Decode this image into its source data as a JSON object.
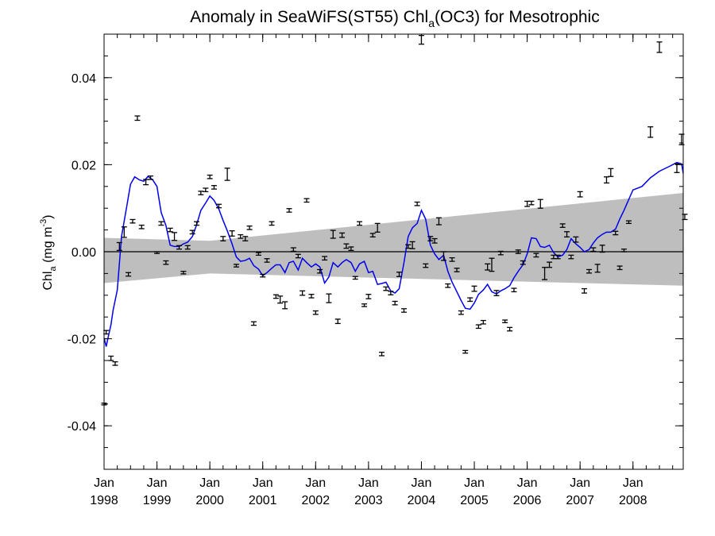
{
  "chart_data": {
    "type": "scatter",
    "title_main": "Anomaly in SeaWiFS(ST55) Chl",
    "title_sub": "a",
    "title_tail": "(OC3) for Mesotrophic",
    "ylabel_main": "Chl",
    "ylabel_sub": "a",
    "ylabel_unit": " (mg m",
    "ylabel_sup": "-3",
    "ylabel_close": ")",
    "ylim": [
      -0.05,
      0.05
    ],
    "xlim": [
      1998.0,
      2008.95
    ],
    "yticks": [
      {
        "value": -0.04,
        "label": "-0.04"
      },
      {
        "value": -0.02,
        "label": "-0.02"
      },
      {
        "value": 0.0,
        "label": "0.00"
      },
      {
        "value": 0.02,
        "label": "0.02"
      },
      {
        "value": 0.04,
        "label": "0.04"
      }
    ],
    "xticks": [
      {
        "value": 1998.0,
        "month": "Jan",
        "year": "1998"
      },
      {
        "value": 1999.0,
        "month": "Jan",
        "year": "1999"
      },
      {
        "value": 2000.0,
        "month": "Jan",
        "year": "2000"
      },
      {
        "value": 2001.0,
        "month": "Jan",
        "year": "2001"
      },
      {
        "value": 2002.0,
        "month": "Jan",
        "year": "2002"
      },
      {
        "value": 2003.0,
        "month": "Jan",
        "year": "2003"
      },
      {
        "value": 2004.0,
        "month": "Jan",
        "year": "2004"
      },
      {
        "value": 2005.0,
        "month": "Jan",
        "year": "2005"
      },
      {
        "value": 2006.0,
        "month": "Jan",
        "year": "2006"
      },
      {
        "value": 2007.0,
        "month": "Jan",
        "year": "2007"
      },
      {
        "value": 2008.0,
        "month": "Jan",
        "year": "2008"
      }
    ],
    "confidence_band": {
      "x": [
        1998.0,
        2000.0,
        2008.95
      ],
      "upper": [
        0.0032,
        0.0025,
        0.0135
      ],
      "lower": [
        -0.0072,
        -0.005,
        -0.0078
      ],
      "color": "#bebebe"
    },
    "zero_line": 0.0,
    "monthly_points": {
      "color": "#000000",
      "points": [
        [
          1998.0,
          -0.035,
          0.0002
        ],
        [
          1998.04,
          -0.0185,
          0.0004
        ],
        [
          1998.13,
          -0.0245,
          0.0005
        ],
        [
          1998.21,
          -0.0257,
          0.0004
        ],
        [
          1998.29,
          0.0012,
          0.0009
        ],
        [
          1998.38,
          0.0045,
          0.0012
        ],
        [
          1998.46,
          -0.0052,
          0.0004
        ],
        [
          1998.54,
          0.007,
          0.0004
        ],
        [
          1998.63,
          0.0307,
          0.0005
        ],
        [
          1998.71,
          0.0057,
          0.0004
        ],
        [
          1998.79,
          0.016,
          0.0006
        ],
        [
          1998.88,
          0.017,
          0.0004
        ],
        [
          1999.0,
          -0.0002,
          0.0002
        ],
        [
          1999.08,
          0.0065,
          0.0004
        ],
        [
          1999.17,
          -0.0025,
          0.0004
        ],
        [
          1999.25,
          0.005,
          0.0004
        ],
        [
          1999.33,
          0.0035,
          0.0009
        ],
        [
          1999.42,
          0.001,
          0.0004
        ],
        [
          1999.5,
          -0.0048,
          0.0003
        ],
        [
          1999.58,
          0.001,
          0.0004
        ],
        [
          1999.67,
          0.0045,
          0.0004
        ],
        [
          1999.75,
          0.0065,
          0.0004
        ],
        [
          1999.83,
          0.0135,
          0.0004
        ],
        [
          1999.92,
          0.0142,
          0.0004
        ],
        [
          2000.0,
          0.0172,
          0.0004
        ],
        [
          2000.08,
          0.0148,
          0.0004
        ],
        [
          2000.17,
          0.0105,
          0.0004
        ],
        [
          2000.25,
          0.003,
          0.0005
        ],
        [
          2000.33,
          0.0178,
          0.0014
        ],
        [
          2000.42,
          0.0042,
          0.0006
        ],
        [
          2000.5,
          -0.0032,
          0.0003
        ],
        [
          2000.58,
          0.0035,
          0.0004
        ],
        [
          2000.67,
          0.003,
          0.0005
        ],
        [
          2000.75,
          0.0055,
          0.0004
        ],
        [
          2000.83,
          -0.0165,
          0.0004
        ],
        [
          2000.92,
          -0.0005,
          0.0003
        ],
        [
          2001.0,
          -0.0055,
          0.0003
        ],
        [
          2001.08,
          -0.002,
          0.0004
        ],
        [
          2001.17,
          0.0065,
          0.0004
        ],
        [
          2001.25,
          -0.0103,
          0.0004
        ],
        [
          2001.33,
          -0.011,
          0.0008
        ],
        [
          2001.42,
          -0.0123,
          0.0008
        ],
        [
          2001.5,
          0.0095,
          0.0004
        ],
        [
          2001.58,
          0.0005,
          0.0004
        ],
        [
          2001.67,
          -0.001,
          0.0004
        ],
        [
          2001.75,
          -0.0095,
          0.0005
        ],
        [
          2001.83,
          0.0118,
          0.0004
        ],
        [
          2001.92,
          -0.0102,
          0.0004
        ],
        [
          2002.0,
          -0.014,
          0.0004
        ],
        [
          2002.08,
          -0.0045,
          0.0004
        ],
        [
          2002.17,
          -0.0015,
          0.0004
        ],
        [
          2002.25,
          -0.0107,
          0.001
        ],
        [
          2002.33,
          0.004,
          0.0009
        ],
        [
          2002.42,
          -0.016,
          0.0005
        ],
        [
          2002.5,
          0.0038,
          0.0005
        ],
        [
          2002.58,
          0.0013,
          0.0005
        ],
        [
          2002.67,
          0.0007,
          0.0004
        ],
        [
          2002.75,
          -0.006,
          0.0003
        ],
        [
          2002.83,
          0.0065,
          0.0004
        ],
        [
          2002.92,
          -0.0123,
          0.0003
        ],
        [
          2003.0,
          -0.0103,
          0.0005
        ],
        [
          2003.08,
          0.0038,
          0.0004
        ],
        [
          2003.17,
          0.0055,
          0.001
        ],
        [
          2003.25,
          -0.0235,
          0.0004
        ],
        [
          2003.33,
          -0.0085,
          0.0004
        ],
        [
          2003.42,
          -0.0095,
          0.0004
        ],
        [
          2003.5,
          -0.0118,
          0.0004
        ],
        [
          2003.58,
          -0.0052,
          0.0005
        ],
        [
          2003.67,
          -0.0135,
          0.0004
        ],
        [
          2003.75,
          0.0012,
          0.0004
        ],
        [
          2003.83,
          0.0015,
          0.0008
        ],
        [
          2003.92,
          0.011,
          0.0004
        ],
        [
          2004.0,
          0.0487,
          0.001
        ],
        [
          2004.08,
          -0.0032,
          0.0004
        ],
        [
          2004.17,
          0.003,
          0.0005
        ],
        [
          2004.25,
          0.0025,
          0.0005
        ],
        [
          2004.33,
          0.007,
          0.0008
        ],
        [
          2004.42,
          -0.001,
          0.001
        ],
        [
          2004.5,
          -0.0078,
          0.0004
        ],
        [
          2004.58,
          -0.0018,
          0.0004
        ],
        [
          2004.67,
          -0.0042,
          0.0004
        ],
        [
          2004.75,
          -0.014,
          0.0004
        ],
        [
          2004.83,
          -0.023,
          0.0003
        ],
        [
          2004.92,
          -0.011,
          0.0004
        ],
        [
          2005.0,
          -0.0085,
          0.0006
        ],
        [
          2005.08,
          -0.0172,
          0.0004
        ],
        [
          2005.17,
          -0.0162,
          0.0004
        ],
        [
          2005.25,
          -0.0035,
          0.0007
        ],
        [
          2005.33,
          -0.003,
          0.0015
        ],
        [
          2005.42,
          -0.0095,
          0.0006
        ],
        [
          2005.5,
          -0.0003,
          0.0004
        ],
        [
          2005.58,
          -0.016,
          0.0003
        ],
        [
          2005.67,
          -0.0178,
          0.0004
        ],
        [
          2005.75,
          -0.0088,
          0.0004
        ],
        [
          2005.83,
          0.0,
          0.0004
        ],
        [
          2005.92,
          -0.0025,
          0.0004
        ],
        [
          2006.0,
          0.011,
          0.0006
        ],
        [
          2006.08,
          0.0112,
          0.0004
        ],
        [
          2006.17,
          -0.0008,
          0.0004
        ],
        [
          2006.25,
          0.011,
          0.001
        ],
        [
          2006.33,
          -0.005,
          0.0014
        ],
        [
          2006.42,
          -0.003,
          0.0006
        ],
        [
          2006.5,
          -0.0012,
          0.0004
        ],
        [
          2006.58,
          -0.0012,
          0.0004
        ],
        [
          2006.67,
          0.006,
          0.0004
        ],
        [
          2006.75,
          0.004,
          0.0006
        ],
        [
          2006.83,
          -0.0012,
          0.0004
        ],
        [
          2006.92,
          0.0028,
          0.0006
        ],
        [
          2007.0,
          0.0132,
          0.0006
        ],
        [
          2007.08,
          -0.009,
          0.0005
        ],
        [
          2007.17,
          -0.0045,
          0.0004
        ],
        [
          2007.25,
          0.0005,
          0.0004
        ],
        [
          2007.33,
          -0.0038,
          0.0009
        ],
        [
          2007.42,
          0.0007,
          0.0008
        ],
        [
          2007.5,
          0.0165,
          0.0007
        ],
        [
          2007.58,
          0.0182,
          0.0009
        ],
        [
          2007.67,
          0.0043,
          0.0004
        ],
        [
          2007.75,
          -0.0037,
          0.0004
        ],
        [
          2007.83,
          0.0003,
          0.0003
        ],
        [
          2007.92,
          0.0068,
          0.0003
        ],
        [
          2008.33,
          0.0275,
          0.0012
        ],
        [
          2008.5,
          0.047,
          0.0012
        ],
        [
          2008.83,
          0.0192,
          0.001
        ],
        [
          2008.92,
          0.0258,
          0.0012
        ],
        [
          2008.98,
          0.008,
          0.0006
        ]
      ]
    },
    "smoothed_series": {
      "color": "#0000ee",
      "x": [
        1998.0,
        1998.04,
        1998.08,
        1998.13,
        1998.17,
        1998.25,
        1998.33,
        1998.42,
        1998.5,
        1998.58,
        1998.67,
        1998.75,
        1998.83,
        1998.92,
        1999.0,
        1999.08,
        1999.17,
        1999.25,
        1999.33,
        1999.42,
        1999.5,
        1999.58,
        1999.67,
        1999.75,
        1999.83,
        1999.92,
        2000.0,
        2000.08,
        2000.17,
        2000.25,
        2000.33,
        2000.42,
        2000.5,
        2000.58,
        2000.67,
        2000.75,
        2000.83,
        2000.92,
        2001.0,
        2001.08,
        2001.17,
        2001.25,
        2001.33,
        2001.42,
        2001.5,
        2001.58,
        2001.67,
        2001.75,
        2001.83,
        2001.92,
        2002.0,
        2002.08,
        2002.17,
        2002.25,
        2002.33,
        2002.42,
        2002.5,
        2002.58,
        2002.67,
        2002.75,
        2002.83,
        2002.92,
        2003.0,
        2003.08,
        2003.17,
        2003.25,
        2003.33,
        2003.42,
        2003.5,
        2003.58,
        2003.67,
        2003.75,
        2003.83,
        2003.92,
        2004.0,
        2004.08,
        2004.17,
        2004.25,
        2004.33,
        2004.42,
        2004.5,
        2004.58,
        2004.67,
        2004.75,
        2004.83,
        2004.92,
        2005.0,
        2005.08,
        2005.17,
        2005.25,
        2005.33,
        2005.42,
        2005.5,
        2005.58,
        2005.67,
        2005.75,
        2005.83,
        2005.92,
        2006.0,
        2006.08,
        2006.17,
        2006.25,
        2006.33,
        2006.42,
        2006.5,
        2006.58,
        2006.67,
        2006.75,
        2006.83,
        2006.92,
        2007.0,
        2007.08,
        2007.17,
        2007.25,
        2007.33,
        2007.42,
        2007.5,
        2007.58,
        2007.67,
        2007.75,
        2007.83,
        2007.92,
        2008.0,
        2008.17,
        2008.33,
        2008.5,
        2008.67,
        2008.83,
        2008.92,
        2008.95
      ],
      "y": [
        -0.0198,
        -0.0218,
        -0.0195,
        -0.0168,
        -0.0135,
        -0.0088,
        0.0035,
        0.0098,
        0.0155,
        0.0172,
        0.0165,
        0.0162,
        0.0173,
        0.0165,
        0.015,
        0.009,
        0.006,
        0.0015,
        0.0012,
        0.0012,
        0.0018,
        0.0022,
        0.0035,
        0.0062,
        0.0095,
        0.0112,
        0.0128,
        0.0118,
        0.0098,
        0.0072,
        0.0048,
        0.0018,
        -0.0012,
        -0.0022,
        -0.002,
        -0.0015,
        -0.0032,
        -0.004,
        -0.0055,
        -0.0048,
        -0.0038,
        -0.003,
        -0.003,
        -0.0048,
        -0.0025,
        -0.0022,
        -0.0042,
        -0.0015,
        -0.0025,
        -0.0035,
        -0.0028,
        -0.0035,
        -0.0072,
        -0.0058,
        -0.0025,
        -0.0035,
        -0.0025,
        -0.0018,
        -0.0025,
        -0.0045,
        -0.0028,
        -0.0022,
        -0.0048,
        -0.0045,
        -0.0075,
        -0.0073,
        -0.007,
        -0.009,
        -0.0095,
        -0.0085,
        -0.0025,
        0.0035,
        0.0055,
        0.0065,
        0.0095,
        0.0075,
        0.0015,
        -0.0005,
        -0.0018,
        -0.0008,
        -0.0045,
        -0.007,
        -0.0092,
        -0.0112,
        -0.013,
        -0.0132,
        -0.0118,
        -0.0098,
        -0.0088,
        -0.0075,
        -0.0092,
        -0.0097,
        -0.009,
        -0.0085,
        -0.0078,
        -0.006,
        -0.0045,
        -0.003,
        -0.0005,
        0.0032,
        0.003,
        0.0012,
        0.001,
        0.0015,
        -0.0002,
        -0.0012,
        -0.0008,
        0.0005,
        0.003,
        0.0018,
        0.001,
        0.0,
        0.0005,
        0.002,
        0.0032,
        0.004,
        0.0045,
        0.0045,
        0.0052,
        0.0075,
        0.0095,
        0.012,
        0.0142,
        0.015,
        0.017,
        0.0185,
        0.0195,
        0.0205,
        0.0202,
        0.018
      ]
    }
  }
}
